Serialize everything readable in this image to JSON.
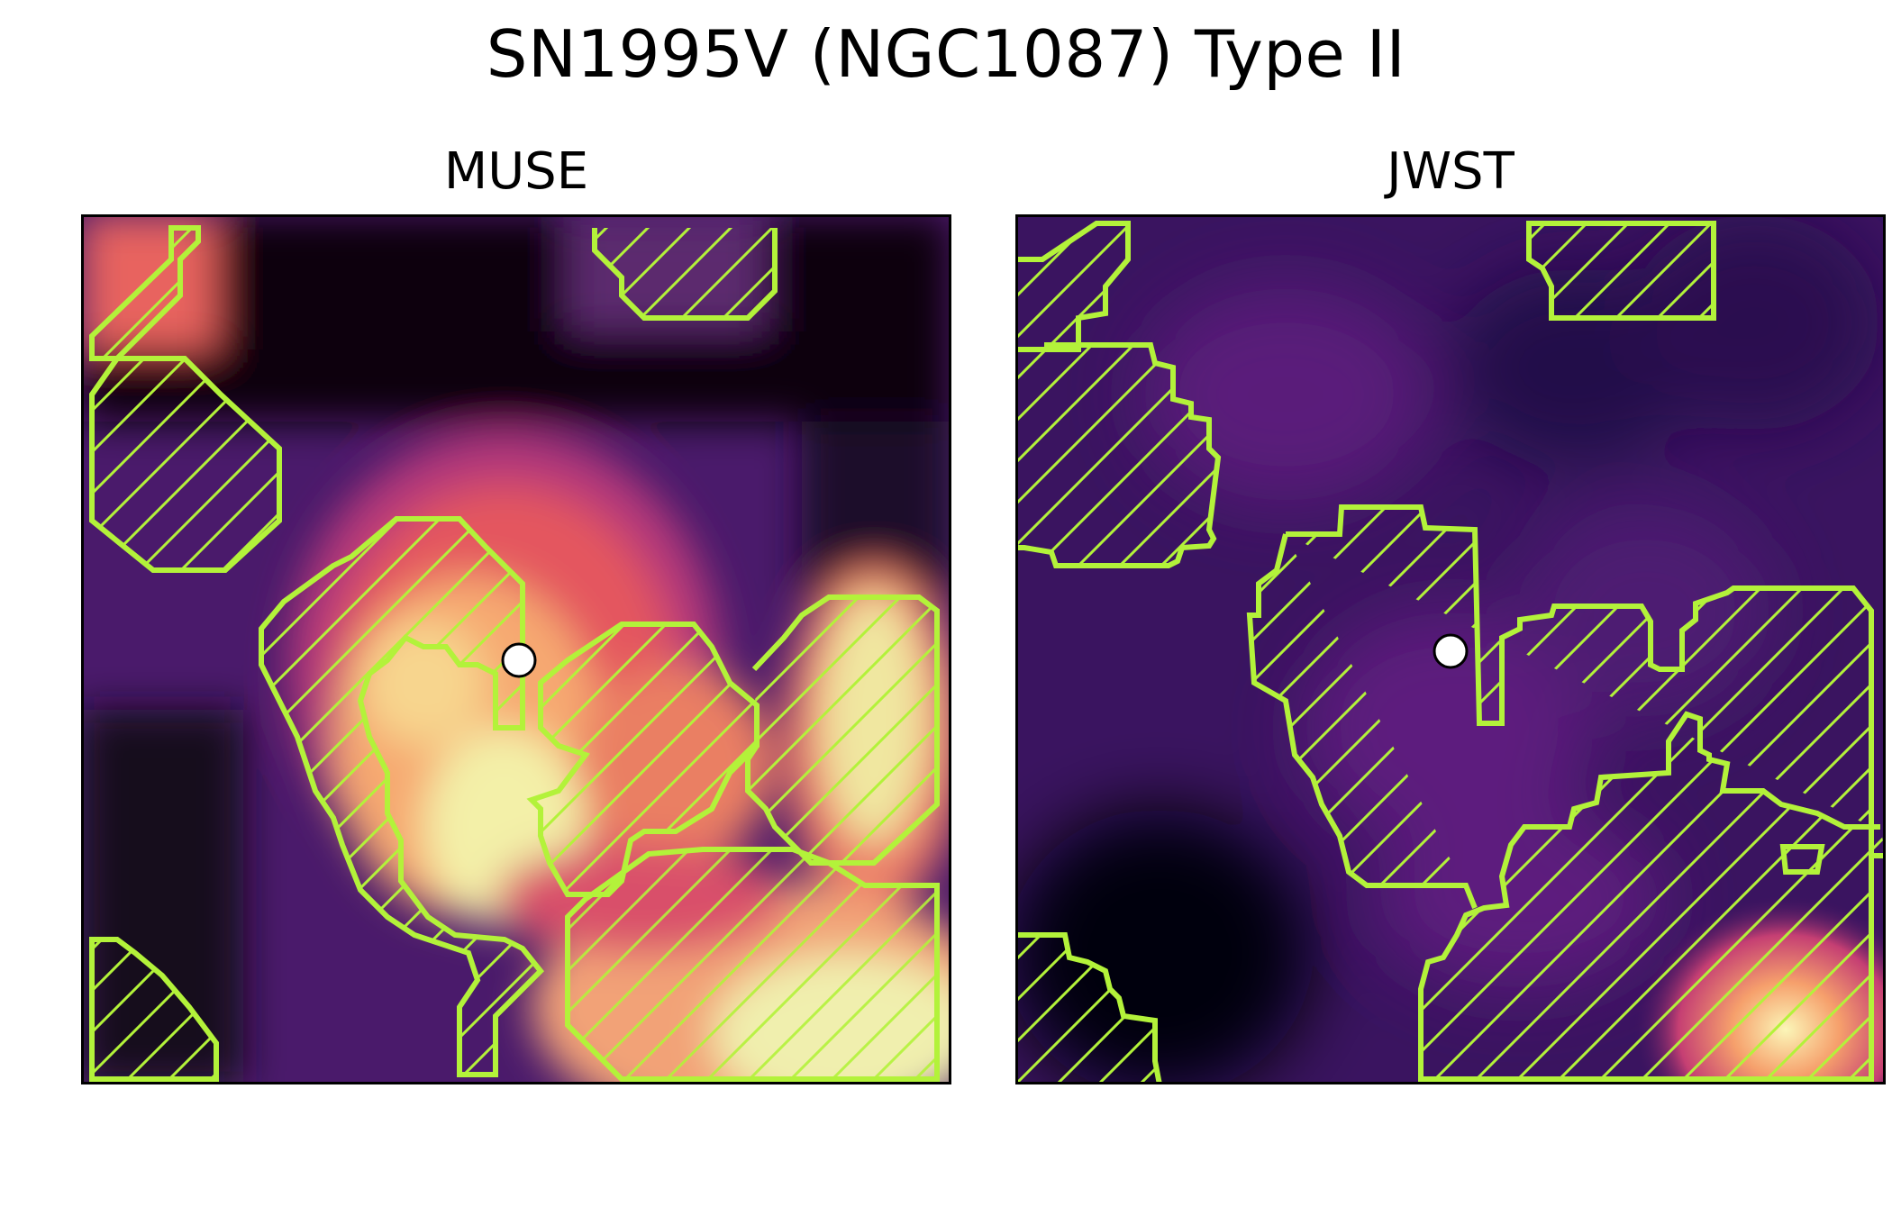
{
  "figure": {
    "title": "SN1995V (NGC1087) Type II"
  },
  "panels": [
    {
      "title": "MUSE"
    },
    {
      "title": "JWST"
    }
  ],
  "colors": {
    "contour": "#b3f23a",
    "marker_fill": "#ffffff",
    "marker_edge": "#000000",
    "colormap": "magma"
  }
}
